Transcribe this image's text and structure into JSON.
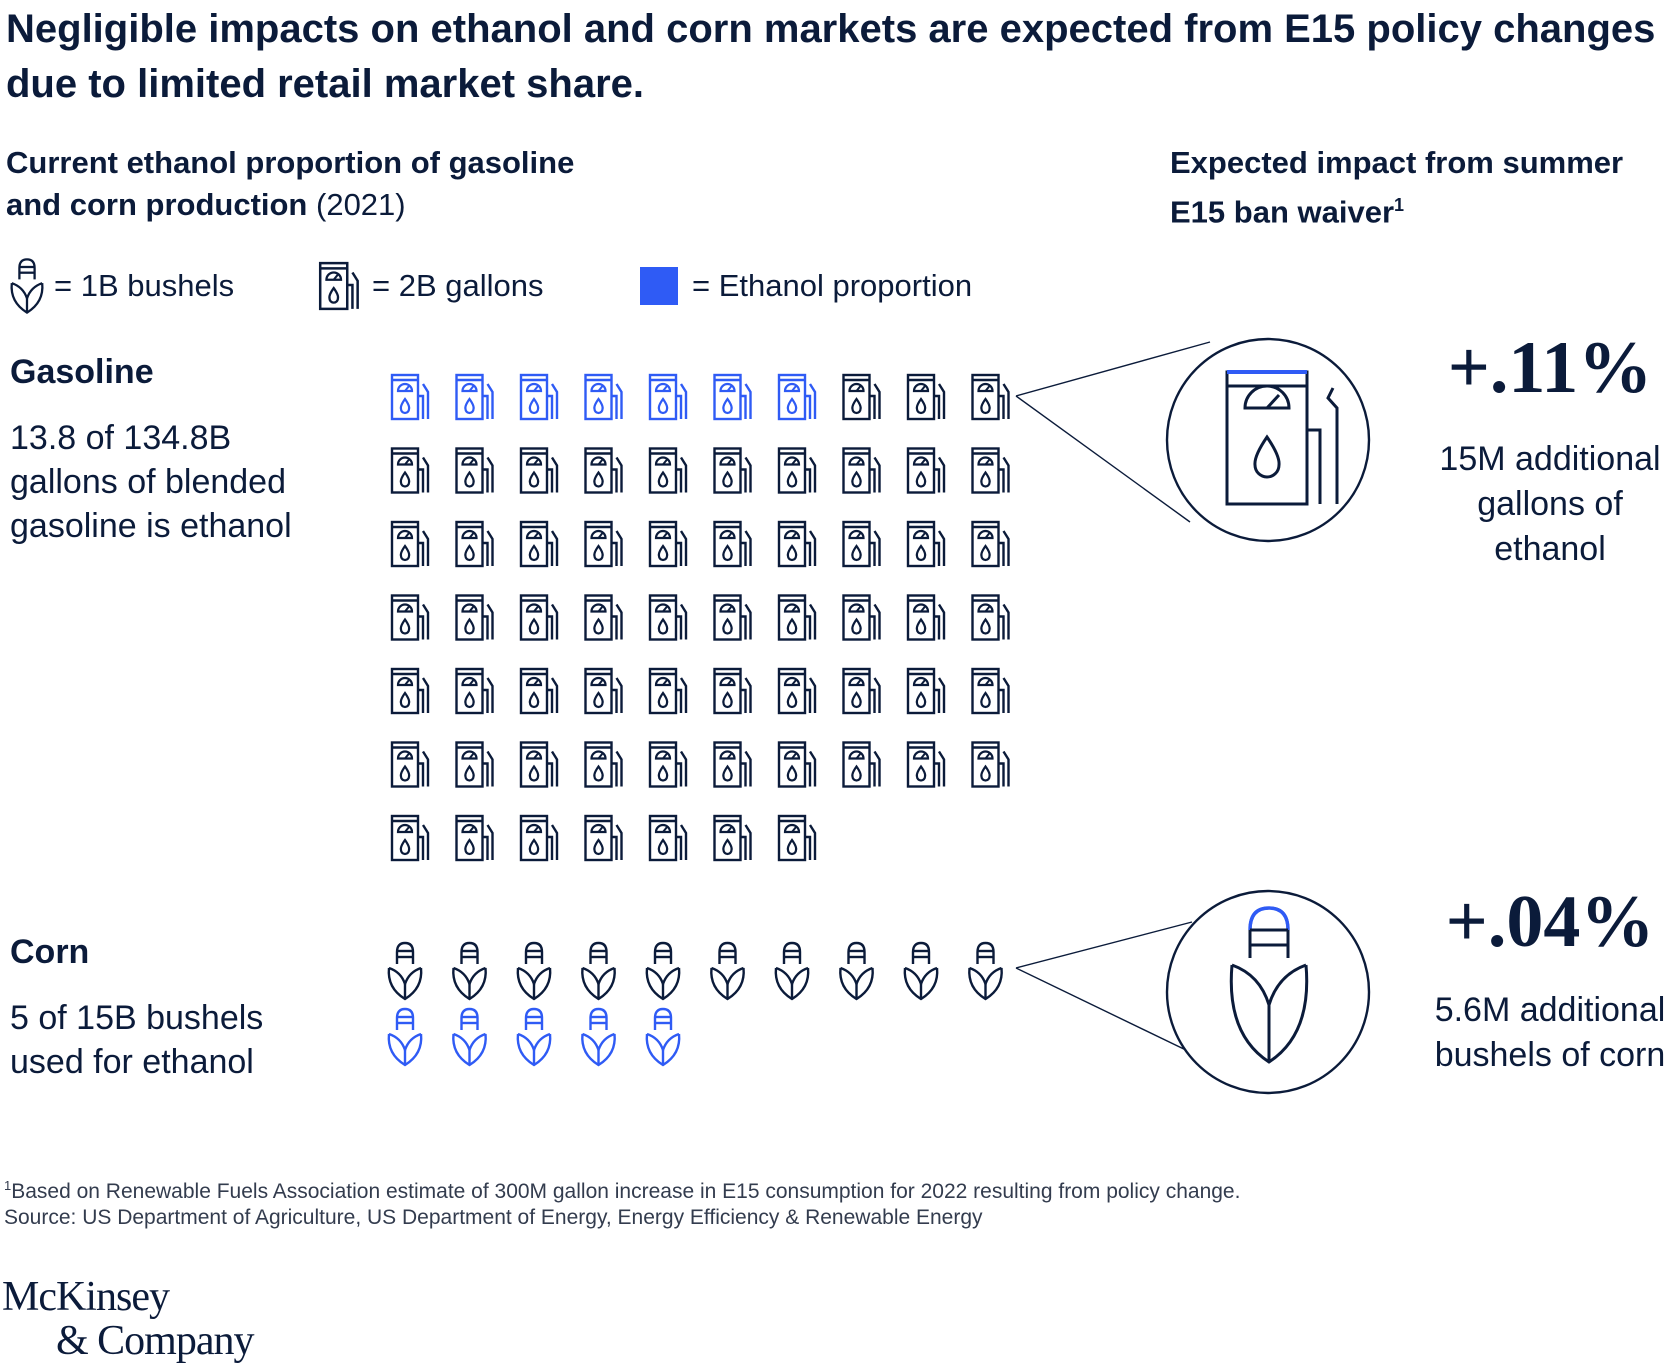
{
  "title": "Negligible impacts on ethanol and corn markets are expected from E15 policy changes due to limited retail market share.",
  "left_heading": {
    "bold": "Current ethanol proportion of gasoline and corn production",
    "light": "(2021)"
  },
  "right_heading": {
    "text": "Expected impact from summer E15 ban waiver",
    "sup": "1"
  },
  "legend": {
    "corn": {
      "text": "= 1B bushels",
      "icon": "corn-icon"
    },
    "pump": {
      "text": "= 2B gallons",
      "icon": "fuel-pump-icon"
    },
    "ethanol": {
      "text": "= Ethanol proportion",
      "color": "#2f5bf5"
    }
  },
  "colors": {
    "ink": "#0b1b3a",
    "ethanol": "#2f5bf5"
  },
  "gasoline": {
    "label": "Gasoline",
    "desc": [
      "13.8 of 134.8B",
      "gallons of blended",
      "gasoline is ethanol"
    ],
    "impact_value": "+.11%",
    "impact_desc": [
      "15M additional",
      "gallons of",
      "ethanol"
    ]
  },
  "corn": {
    "label": "Corn",
    "desc": [
      "5 of 15B bushels",
      "used for ethanol"
    ],
    "impact_value": "+.04%",
    "impact_desc": [
      "5.6M additional",
      "bushels of corn"
    ]
  },
  "chart_data": [
    {
      "type": "pictogram",
      "name": "Gasoline",
      "unit_per_icon": "2B gallons",
      "icon_count": 67,
      "highlighted_count": 7,
      "per_row": 10,
      "total": 134.8,
      "ethanol": 13.8,
      "impact_percent": 0.11
    },
    {
      "type": "pictogram",
      "name": "Corn",
      "unit_per_icon": "1B bushels",
      "icon_count": 15,
      "highlighted_last": 5,
      "per_row": 10,
      "total": 15,
      "ethanol": 5,
      "impact_percent": 0.04
    }
  ],
  "footnote": "Based on Renewable Fuels Association estimate of 300M gallon increase in E15 consumption for 2022 resulting from policy change.",
  "footnote_mark": "1",
  "source": "Source: US Department of Agriculture, US Department of Energy, Energy Efficiency & Renewable Energy",
  "logo": [
    "McKinsey",
    "& Company"
  ]
}
